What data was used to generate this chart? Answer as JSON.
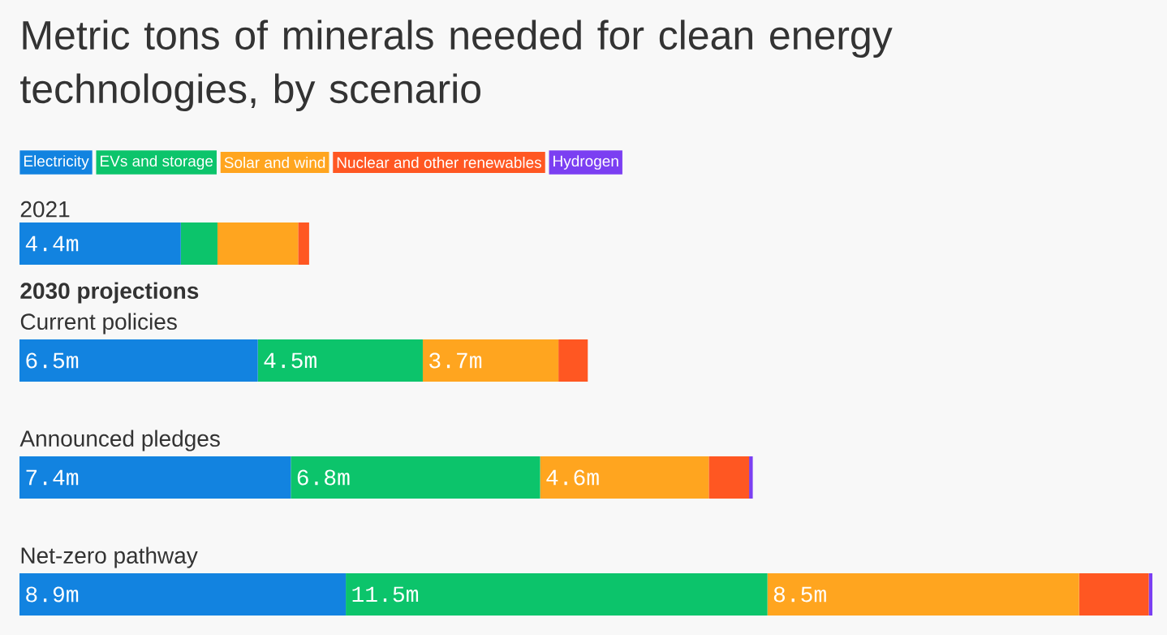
{
  "chart_data": {
    "type": "bar",
    "orientation": "horizontal",
    "stacked": true,
    "title": "Metric tons of minerals needed for clean energy technologies, by scenario",
    "categories": [
      "2021",
      "Current policies",
      "Announced pledges",
      "Net-zero pathway"
    ],
    "annotations": [
      "2030 projections"
    ],
    "legend": "top left",
    "series": [
      {
        "name": "Electricity",
        "color": "#1283e0",
        "values": [
          4.4,
          6.5,
          7.4,
          8.9
        ],
        "value_labels": [
          "4.4m",
          "6.5m",
          "7.4m",
          "8.9m"
        ]
      },
      {
        "name": "EVs and storage",
        "color": "#0cc46b",
        "values": [
          1.0,
          4.5,
          6.8,
          11.5
        ],
        "value_labels": [
          null,
          "4.5m",
          "6.8m",
          "11.5m"
        ]
      },
      {
        "name": "Solar and wind",
        "color": "#ffa51f",
        "values": [
          2.2,
          3.7,
          4.6,
          8.5
        ],
        "value_labels": [
          null,
          "3.7m",
          "4.6m",
          "8.5m"
        ]
      },
      {
        "name": "Nuclear and other renewables",
        "color": "#ff5722",
        "values": [
          0.3,
          0.8,
          1.1,
          1.9
        ]
      },
      {
        "name": "Hydrogen",
        "color": "#7b3ff2",
        "values": [
          0,
          0,
          0.1,
          0.1
        ]
      }
    ]
  }
}
